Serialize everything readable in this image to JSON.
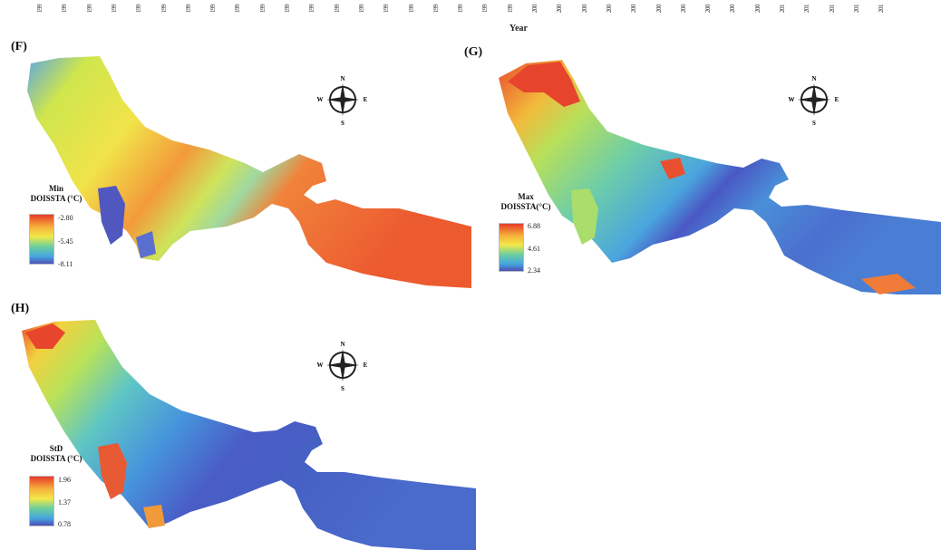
{
  "axis": {
    "ticks": [
      "199",
      "199",
      "199",
      "199",
      "199",
      "199",
      "199",
      "199",
      "199",
      "199",
      "199",
      "199",
      "199",
      "199",
      "199",
      "199",
      "199",
      "199",
      "199",
      "199",
      "200",
      "200",
      "200",
      "200",
      "200",
      "200",
      "200",
      "200",
      "200",
      "200",
      "201",
      "201",
      "201",
      "201",
      "201"
    ],
    "label": "Year"
  },
  "panels": {
    "F": {
      "letter": "(F)",
      "legend": {
        "title_line1": "Min",
        "title_line2": "DOISSTA (°C)",
        "max": "-2.80",
        "mid": "-5.45",
        "min": "-8.11"
      },
      "colors": {
        "high": "#e8432c",
        "mid": "#f3d83a",
        "low": "#4f5fc4"
      }
    },
    "G": {
      "letter": "(G)",
      "legend": {
        "title_line1": "Max",
        "title_line2": "DOISSTA(°C)",
        "max": "6.88",
        "mid": "4.61",
        "min": "2.34"
      }
    },
    "H": {
      "letter": "(H)",
      "legend": {
        "title_line1": "StD",
        "title_line2": "DOISSTA (°C)",
        "max": "1.96",
        "mid": "1.37",
        "min": "0.78"
      }
    }
  },
  "compass": {
    "n": "N",
    "s": "S",
    "e": "E",
    "w": "W"
  }
}
